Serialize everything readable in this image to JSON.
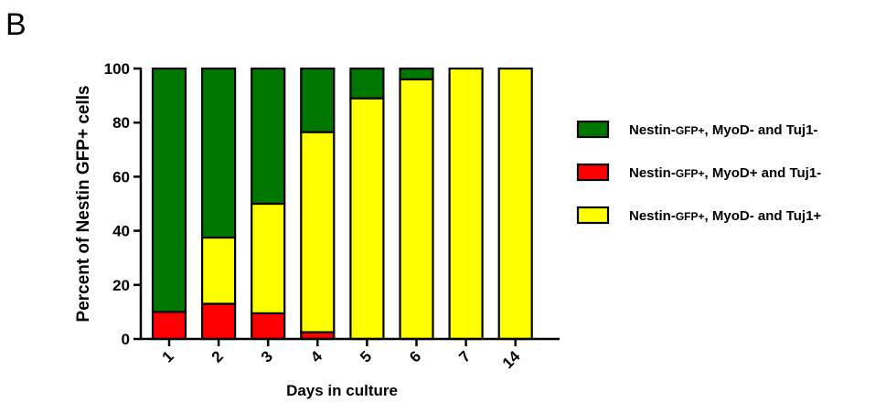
{
  "panel_label": "B",
  "chart_data": {
    "type": "bar",
    "stacked": true,
    "title": "",
    "xlabel": "Days in culture",
    "ylabel": "Percent of Nestin GFP+ cells",
    "ylim": [
      0,
      100
    ],
    "yticks": [
      0,
      20,
      40,
      60,
      80,
      100
    ],
    "categories": [
      "1",
      "2",
      "3",
      "4",
      "5",
      "6",
      "7",
      "14"
    ],
    "grid": false,
    "legend_position": "right",
    "series": [
      {
        "name": "Nestin-GFP+, MyoD+ and Tuj1-",
        "name_parts": [
          {
            "text": "Nestin-",
            "small": false
          },
          {
            "text": "GFP+",
            "small": true
          },
          {
            "text": ", MyoD+ and Tuj1-",
            "small": false
          }
        ],
        "color": "#ff0000",
        "values": [
          10,
          13,
          9.5,
          2.5,
          0,
          0,
          0,
          0
        ]
      },
      {
        "name": "Nestin-GFP+, MyoD- and Tuj1+",
        "name_parts": [
          {
            "text": "Nestin-",
            "small": false
          },
          {
            "text": "GFP+",
            "small": true
          },
          {
            "text": ", MyoD- and Tuj1+",
            "small": false
          }
        ],
        "color": "#ffff00",
        "values": [
          0,
          24.5,
          40.5,
          74,
          89,
          96,
          100,
          100
        ]
      },
      {
        "name": "Nestin-GFP+, MyoD- and Tuj1-",
        "name_parts": [
          {
            "text": "Nestin-",
            "small": false
          },
          {
            "text": "GFP+",
            "small": true
          },
          {
            "text": ", MyoD- and Tuj1-",
            "small": false
          }
        ],
        "color": "#007700",
        "values": [
          90,
          62.5,
          50,
          23.5,
          11,
          4,
          0,
          0
        ]
      }
    ],
    "legend_order": [
      2,
      0,
      1
    ]
  }
}
